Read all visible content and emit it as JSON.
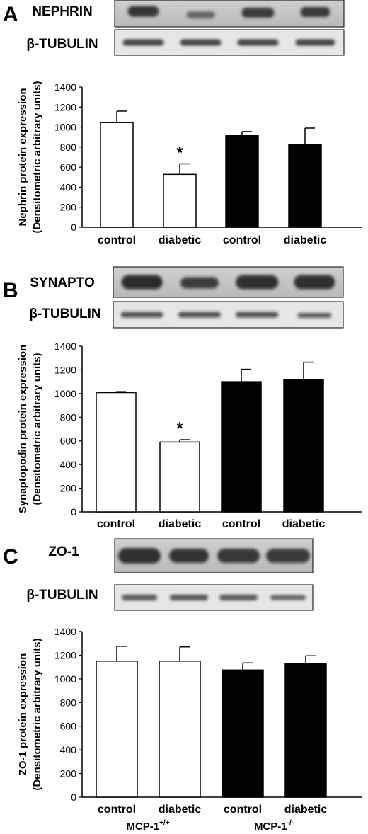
{
  "figure": {
    "group_labels": [
      {
        "base": "MCP-1",
        "sup": "+/+"
      },
      {
        "base": "MCP-1",
        "sup": "-/-"
      }
    ]
  },
  "chart_data": [
    {
      "type": "bar",
      "panel": "A",
      "blot_labels": [
        "NEPHRIN",
        "β-TUBULIN"
      ],
      "categories": [
        "control",
        "diabetic",
        "control",
        "diabetic"
      ],
      "values": [
        1045,
        528,
        920,
        825
      ],
      "errors": [
        115,
        105,
        35,
        165
      ],
      "bar_colors": [
        "#ffffff",
        "#ffffff",
        "#000000",
        "#000000"
      ],
      "significance": [
        "",
        "*",
        "",
        ""
      ],
      "ylabel": [
        "Nephrin protein expression",
        "(Densitometric arbitrary units)"
      ],
      "ylim": [
        0,
        1400
      ],
      "yticks": [
        0,
        200,
        400,
        600,
        800,
        1000,
        1200,
        1400
      ],
      "grid": false
    },
    {
      "type": "bar",
      "panel": "B",
      "blot_labels": [
        "SYNAPTO",
        "β-TUBULIN"
      ],
      "categories": [
        "control",
        "diabetic",
        "control",
        "diabetic"
      ],
      "values": [
        1008,
        590,
        1100,
        1115
      ],
      "errors": [
        8,
        20,
        105,
        150
      ],
      "bar_colors": [
        "#ffffff",
        "#ffffff",
        "#000000",
        "#000000"
      ],
      "significance": [
        "",
        "*",
        "",
        ""
      ],
      "ylabel": [
        "Synaptopodin protein expression",
        "(Densitometric arbitrary units)"
      ],
      "ylim": [
        0,
        1400
      ],
      "yticks": [
        0,
        200,
        400,
        600,
        800,
        1000,
        1200,
        1400
      ],
      "grid": false
    },
    {
      "type": "bar",
      "panel": "C",
      "blot_labels": [
        "ZO-1",
        "β-TUBULIN"
      ],
      "categories": [
        "control",
        "diabetic",
        "control",
        "diabetic"
      ],
      "values": [
        1150,
        1150,
        1075,
        1130
      ],
      "errors": [
        125,
        120,
        60,
        65
      ],
      "bar_colors": [
        "#ffffff",
        "#ffffff",
        "#000000",
        "#000000"
      ],
      "significance": [
        "",
        "",
        "",
        ""
      ],
      "ylabel": [
        "ZO-1 protein expression",
        "(Densitometric arbitrary units)"
      ],
      "ylim": [
        0,
        1400
      ],
      "yticks": [
        0,
        200,
        400,
        600,
        800,
        1000,
        1200,
        1400
      ],
      "grid": false
    }
  ]
}
